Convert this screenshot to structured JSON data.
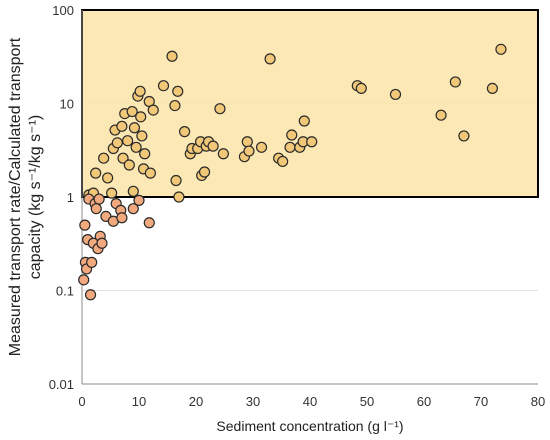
{
  "chart_data": {
    "type": "scatter",
    "title": "",
    "xlabel": "Sediment concentration (g l⁻¹)",
    "ylabel_line1": "Measured transport rate/Calculated transport",
    "ylabel_line2": "capacity (kg s⁻¹/kg s⁻¹)",
    "x_axis": {
      "min": 0,
      "max": 80,
      "step": 10,
      "tick_labels": [
        "0",
        "10",
        "20",
        "30",
        "40",
        "50",
        "60",
        "70",
        "80"
      ]
    },
    "y_axis": {
      "scale": "log",
      "min": 0.01,
      "max": 100,
      "ticks": [
        0.01,
        0.1,
        1,
        10,
        100
      ],
      "tick_labels": [
        "0.01",
        "0.1",
        "1",
        "10",
        "100"
      ]
    },
    "grid": "horizontal",
    "highlight_region": {
      "y_from": 1,
      "y_to": 100,
      "x_from": 0,
      "x_to": 80,
      "fill": "#fbe6ad",
      "stroke": "#000000"
    },
    "colors": {
      "above_fill": "#f1c778",
      "below_fill": "#f2a97e",
      "point_stroke": "#2b2b2b",
      "grid": "#e2e2e2",
      "axis": "#8c8c8c"
    },
    "points_above_1": [
      [
        1.2,
        1.05
      ],
      [
        2.0,
        1.1
      ],
      [
        2.4,
        1.8
      ],
      [
        3.8,
        2.6
      ],
      [
        4.5,
        1.6
      ],
      [
        5.2,
        1.1
      ],
      [
        5.5,
        3.3
      ],
      [
        5.8,
        5.2
      ],
      [
        6.2,
        3.8
      ],
      [
        7.0,
        5.7
      ],
      [
        7.2,
        2.6
      ],
      [
        7.5,
        7.8
      ],
      [
        8.0,
        4.0
      ],
      [
        8.3,
        2.2
      ],
      [
        8.8,
        8.2
      ],
      [
        9.0,
        1.15
      ],
      [
        9.2,
        5.5
      ],
      [
        9.5,
        3.4
      ],
      [
        9.8,
        12.0
      ],
      [
        10.2,
        13.5
      ],
      [
        10.3,
        7.2
      ],
      [
        10.5,
        4.5
      ],
      [
        10.8,
        2.0
      ],
      [
        11.0,
        2.9
      ],
      [
        11.8,
        10.5
      ],
      [
        12.0,
        1.8
      ],
      [
        12.5,
        8.5
      ],
      [
        14.3,
        15.5
      ],
      [
        15.8,
        32.0
      ],
      [
        16.3,
        9.5
      ],
      [
        16.5,
        1.5
      ],
      [
        16.8,
        13.5
      ],
      [
        17.0,
        1.0
      ],
      [
        18.0,
        5.0
      ],
      [
        19.0,
        2.9
      ],
      [
        19.3,
        3.3
      ],
      [
        20.3,
        3.3
      ],
      [
        20.8,
        3.9
      ],
      [
        21.0,
        1.7
      ],
      [
        21.5,
        1.85
      ],
      [
        21.8,
        3.5
      ],
      [
        22.2,
        3.9
      ],
      [
        23.0,
        3.5
      ],
      [
        24.2,
        8.8
      ],
      [
        24.8,
        2.9
      ],
      [
        28.5,
        2.7
      ],
      [
        29.0,
        3.9
      ],
      [
        29.3,
        3.1
      ],
      [
        31.5,
        3.4
      ],
      [
        33.0,
        30.0
      ],
      [
        34.5,
        2.6
      ],
      [
        35.2,
        2.4
      ],
      [
        36.5,
        3.4
      ],
      [
        36.8,
        4.6
      ],
      [
        38.2,
        3.4
      ],
      [
        38.8,
        3.9
      ],
      [
        39.0,
        6.5
      ],
      [
        40.3,
        3.9
      ],
      [
        48.3,
        15.5
      ],
      [
        49.0,
        14.5
      ],
      [
        55.0,
        12.5
      ],
      [
        63.0,
        7.5
      ],
      [
        65.5,
        17.0
      ],
      [
        67.0,
        4.5
      ],
      [
        72.0,
        14.5
      ],
      [
        73.5,
        38.0
      ]
    ],
    "points_below_1": [
      [
        0.3,
        0.13
      ],
      [
        0.5,
        0.5
      ],
      [
        0.6,
        0.2
      ],
      [
        0.8,
        0.17
      ],
      [
        1.0,
        0.35
      ],
      [
        1.2,
        0.95
      ],
      [
        1.5,
        0.09
      ],
      [
        1.7,
        0.2
      ],
      [
        2.0,
        0.32
      ],
      [
        2.3,
        0.85
      ],
      [
        2.5,
        0.75
      ],
      [
        2.8,
        0.28
      ],
      [
        3.0,
        0.95
      ],
      [
        3.2,
        0.38
      ],
      [
        3.5,
        0.32
      ],
      [
        4.2,
        0.62
      ],
      [
        5.5,
        0.55
      ],
      [
        6.0,
        0.85
      ],
      [
        6.8,
        0.72
      ],
      [
        7.0,
        0.6
      ],
      [
        9.0,
        0.75
      ],
      [
        10.0,
        0.92
      ],
      [
        11.8,
        0.53
      ]
    ]
  }
}
